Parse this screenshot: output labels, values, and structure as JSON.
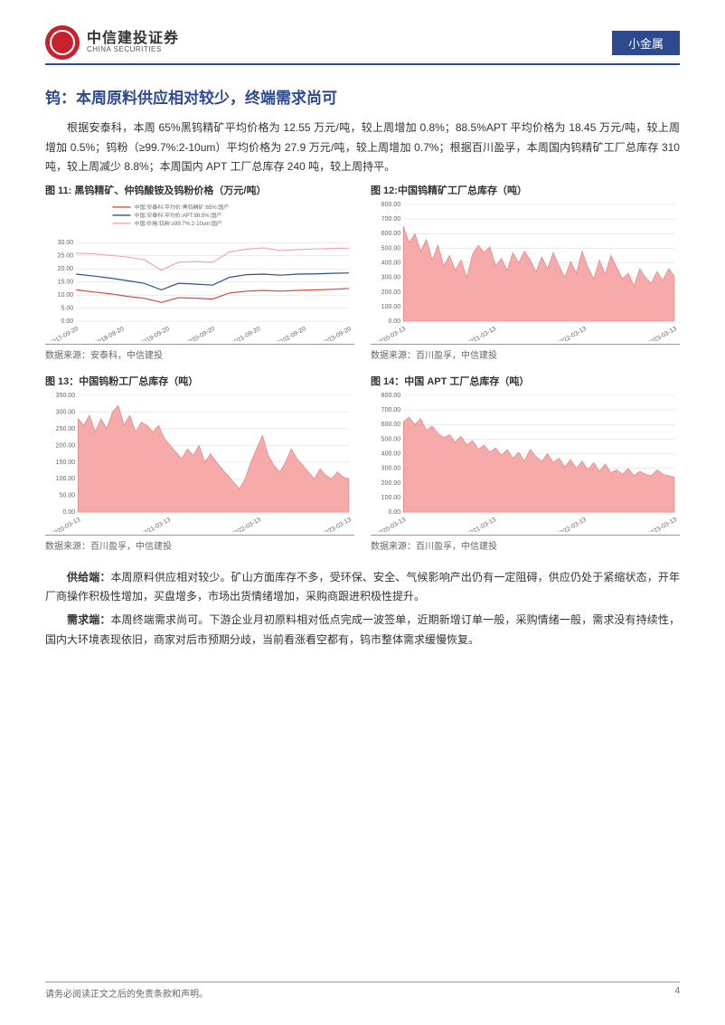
{
  "header": {
    "logo_cn": "中信建投证券",
    "logo_en": "CHINA SECURITIES",
    "category": "小金属"
  },
  "section": {
    "title": "钨：本周原料供应相对较少，终端需求尚可",
    "para1": "根据安泰科，本周 65%黑钨精矿平均价格为 12.55 万元/吨，较上周增加 0.8%；88.5%APT 平均价格为 18.45 万元/吨，较上周增加 0.5%；钨粉（≥99.7%:2-10um）平均价格为 27.9 万元/吨，较上周增加 0.7%；根据百川盈孚，本周国内钨精矿工厂总库存 310 吨，较上周减少 8.8%；本周国内 APT 工厂总库存 240 吨，较上周持平。"
  },
  "chart11": {
    "type": "line",
    "title": "图 11: 黑钨精矿、仲钨酸铵及钨粉价格（万元/吨）",
    "source": "数据来源：安泰科，中信建投",
    "legend": [
      "中国:安泰科:平均价:黑钨精矿:65%:国产",
      "中国:安泰科:平均价:APT:88.5%:国产",
      "中国:价格:钨粉:≥99.7%:2-10um:国产"
    ],
    "legend_colors": [
      "#d94a3a",
      "#2b4f8e",
      "#f4a6a6"
    ],
    "background_color": "#ffffff",
    "grid_color": "#d9d9d9",
    "text_color": "#666666",
    "label_fontsize": 7,
    "legend_fontsize": 6,
    "ylim": [
      0,
      35
    ],
    "yticks": [
      0,
      5,
      10,
      15,
      20,
      25,
      30
    ],
    "ytick_labels": [
      "0.00",
      "5.00",
      "10.00",
      "15.00",
      "20.00",
      "25.00",
      "30.00"
    ],
    "xticks": [
      "2017-09-20",
      "2018-09-20",
      "2019-09-20",
      "2020-09-20",
      "2021-09-20",
      "2022-09-20",
      "2023-09-20"
    ],
    "line_width": 1.2,
    "series": {
      "red": [
        12,
        11.2,
        10.5,
        9.5,
        8.8,
        7.2,
        9.0,
        8.8,
        8.5,
        10.8,
        11.5,
        11.8,
        11.5,
        11.8,
        12.0,
        12.2,
        12.5
      ],
      "blue": [
        18,
        17.3,
        16.5,
        15.5,
        14.5,
        12.0,
        14.5,
        14.2,
        13.8,
        16.8,
        17.8,
        18.0,
        17.6,
        18.0,
        18.1,
        18.3,
        18.45
      ],
      "pink": [
        26,
        25.8,
        25.2,
        24.5,
        23.5,
        19.5,
        22.5,
        22.8,
        22.5,
        26.5,
        27.5,
        28.0,
        27.0,
        27.4,
        27.6,
        27.8,
        27.9
      ]
    }
  },
  "chart12": {
    "type": "area",
    "title": "图 12:中国钨精矿工厂总库存（吨）",
    "source": "数据来源：百川盈孚，中信建投",
    "background_color": "#ffffff",
    "grid_color": "#d9d9d9",
    "text_color": "#666666",
    "label_fontsize": 7,
    "fill_color": "#f5a5a5",
    "fill_opacity": 0.95,
    "stroke_color": "#e07878",
    "ylim": [
      0,
      800
    ],
    "yticks": [
      0,
      100,
      200,
      300,
      400,
      500,
      600,
      700,
      800
    ],
    "ytick_labels": [
      "0.00",
      "100.00",
      "200.00",
      "300.00",
      "400.00",
      "500.00",
      "600.00",
      "700.00",
      "800.00"
    ],
    "xticks": [
      "2020-03-13",
      "2021-03-13",
      "2022-03-13",
      "2023-03-13"
    ],
    "values": [
      650,
      540,
      600,
      480,
      560,
      420,
      520,
      380,
      450,
      350,
      420,
      300,
      460,
      520,
      470,
      510,
      380,
      430,
      350,
      470,
      400,
      480,
      420,
      340,
      440,
      360,
      470,
      380,
      300,
      410,
      330,
      480,
      370,
      290,
      420,
      320,
      450,
      370,
      290,
      330,
      240,
      360,
      300,
      260,
      340,
      280,
      360,
      310
    ]
  },
  "chart13": {
    "type": "area",
    "title": "图 13：中国钨粉工厂总库存（吨）",
    "source": "数据来源：百川盈孚，中信建投",
    "background_color": "#ffffff",
    "grid_color": "#d9d9d9",
    "text_color": "#666666",
    "label_fontsize": 7,
    "fill_color": "#f5a5a5",
    "fill_opacity": 0.95,
    "stroke_color": "#e07878",
    "ylim": [
      0,
      350
    ],
    "yticks": [
      0,
      50,
      100,
      150,
      200,
      250,
      300,
      350
    ],
    "ytick_labels": [
      "0.00",
      "50.00",
      "100.00",
      "150.00",
      "200.00",
      "250.00",
      "300.00",
      "350.00"
    ],
    "xticks": [
      "2020-03-13",
      "2021-03-13",
      "2022-03-13",
      "2023-03-13"
    ],
    "values": [
      280,
      260,
      290,
      240,
      280,
      250,
      300,
      320,
      260,
      290,
      240,
      270,
      260,
      240,
      260,
      220,
      200,
      180,
      160,
      190,
      170,
      200,
      150,
      175,
      150,
      130,
      110,
      90,
      70,
      100,
      150,
      190,
      230,
      170,
      140,
      120,
      150,
      190,
      160,
      140,
      120,
      100,
      130,
      110,
      100,
      120,
      105,
      100
    ]
  },
  "chart14": {
    "type": "area",
    "title": "图 14：中国 APT 工厂总库存（吨）",
    "source": "数据来源：百川盈孚，中信建投",
    "background_color": "#ffffff",
    "grid_color": "#d9d9d9",
    "text_color": "#666666",
    "label_fontsize": 7,
    "fill_color": "#f5a5a5",
    "fill_opacity": 0.95,
    "stroke_color": "#e07878",
    "ylim": [
      0,
      800
    ],
    "yticks": [
      0,
      100,
      200,
      300,
      400,
      500,
      600,
      700,
      800
    ],
    "ytick_labels": [
      "0.00",
      "100.00",
      "200.00",
      "300.00",
      "400.00",
      "500.00",
      "600.00",
      "700.00",
      "800.00"
    ],
    "xticks": [
      "2020-03-13",
      "2021-03-13",
      "2022-03-13",
      "2023-03-13"
    ],
    "values": [
      620,
      650,
      600,
      640,
      560,
      590,
      540,
      510,
      530,
      480,
      520,
      460,
      490,
      430,
      460,
      410,
      440,
      390,
      430,
      370,
      410,
      350,
      430,
      380,
      350,
      400,
      340,
      370,
      310,
      360,
      300,
      350,
      290,
      340,
      280,
      330,
      270,
      290,
      260,
      300,
      250,
      280,
      260,
      250,
      290,
      260,
      250,
      240
    ]
  },
  "supply": {
    "label": "供给端：",
    "text": "本周原料供应相对较少。矿山方面库存不多，受环保、安全、气候影响产出仍有一定阻碍，供应仍处于紧缩状态，开年厂商操作积极性增加，买盘增多，市场出货情绪增加，采购商跟进积极性提升。"
  },
  "demand": {
    "label": "需求端：",
    "text": "本周终端需求尚可。下游企业月初原料相对低点完成一波签单，近期新增订单一般，采购情绪一般，需求没有持续性，国内大环境表现依旧，商家对后市预期分歧，当前看涨看空都有，钨市整体需求缓慢恢复。"
  },
  "footer": {
    "disclaimer": "请务必阅读正文之后的免责条款和声明。",
    "page": "4"
  }
}
